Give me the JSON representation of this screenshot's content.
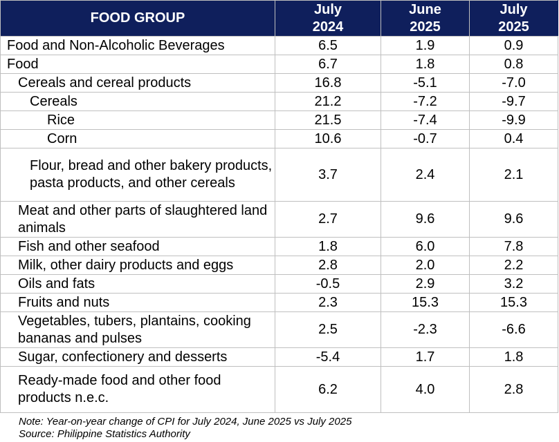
{
  "table": {
    "headers": [
      {
        "line1": "FOOD GROUP",
        "line2": ""
      },
      {
        "line1": "July",
        "line2": "2024"
      },
      {
        "line1": "June",
        "line2": "2025"
      },
      {
        "line1": "July",
        "line2": "2025"
      }
    ],
    "rows": [
      {
        "label": "Food and Non-Alcoholic Beverages",
        "level": 0,
        "v1": "6.5",
        "v2": "1.9",
        "v3": "0.9"
      },
      {
        "label": "Food",
        "level": 0,
        "v1": "6.7",
        "v2": "1.8",
        "v3": "0.8"
      },
      {
        "label": "Cereals and cereal products",
        "level": 1,
        "v1": "16.8",
        "v2": "-5.1",
        "v3": "-7.0"
      },
      {
        "label": "Cereals",
        "level": 2,
        "v1": "21.2",
        "v2": "-7.2",
        "v3": "-9.7"
      },
      {
        "label": "Rice",
        "level": 3,
        "v1": "21.5",
        "v2": "-7.4",
        "v3": "-9.9"
      },
      {
        "label": "Corn",
        "level": 3,
        "v1": "10.6",
        "v2": "-0.7",
        "v3": "0.4"
      },
      {
        "label": "Flour, bread and other bakery products, pasta products, and other cereals",
        "level": 2,
        "v1": "3.7",
        "v2": "2.4",
        "v3": "2.1"
      },
      {
        "label": "Meat and other parts of slaughtered land animals",
        "level": 1,
        "v1": "2.7",
        "v2": "9.6",
        "v3": "9.6"
      },
      {
        "label": "Fish and other seafood",
        "level": 1,
        "v1": "1.8",
        "v2": "6.0",
        "v3": "7.8"
      },
      {
        "label": "Milk, other dairy products and eggs",
        "level": 1,
        "v1": "2.8",
        "v2": "2.0",
        "v3": "2.2"
      },
      {
        "label": "Oils and fats",
        "level": 1,
        "v1": "-0.5",
        "v2": "2.9",
        "v3": "3.2"
      },
      {
        "label": "Fruits and nuts",
        "level": 1,
        "v1": "2.3",
        "v2": "15.3",
        "v3": "15.3"
      },
      {
        "label": "Vegetables, tubers, plantains, cooking bananas and pulses",
        "level": 1,
        "v1": "2.5",
        "v2": "-2.3",
        "v3": "-6.6"
      },
      {
        "label": "Sugar, confectionery and desserts",
        "level": 1,
        "v1": "-5.4",
        "v2": "1.7",
        "v3": "1.8"
      },
      {
        "label": "Ready-made food and other food products n.e.c.",
        "level": 1,
        "v1": "6.2",
        "v2": "4.0",
        "v3": "2.8"
      }
    ]
  },
  "footnote": {
    "note": "Note: Year-on-year change of CPI for July 2024, June 2025 vs July 2025",
    "source": "Source: Philippine Statistics Authority"
  },
  "colors": {
    "header_bg": "#0f1f5c",
    "header_text": "#ffffff",
    "grid": "#bfbfbf"
  }
}
